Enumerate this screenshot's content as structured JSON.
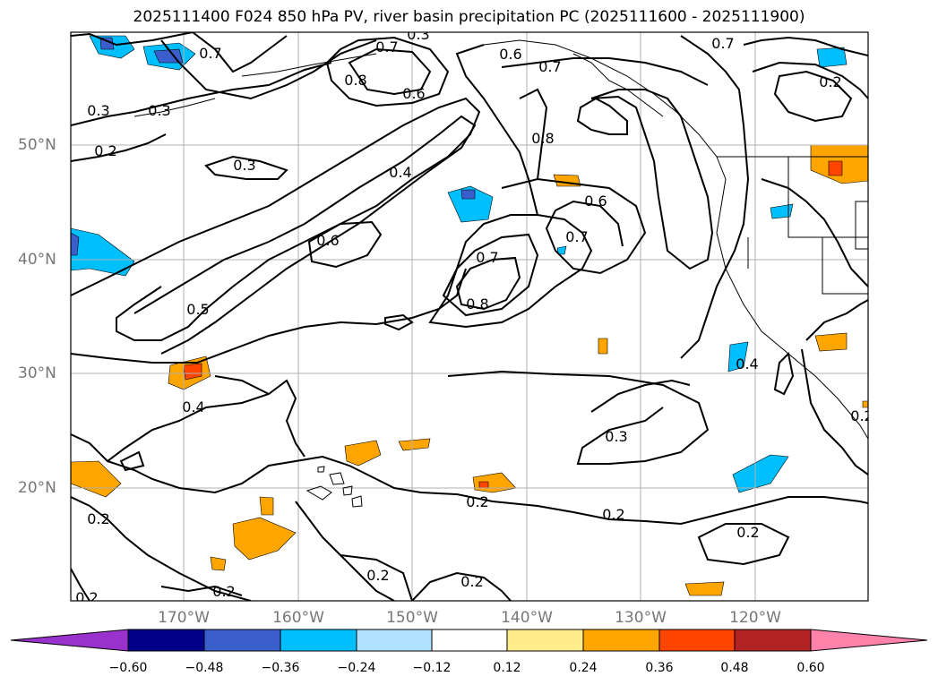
{
  "title": "2025111400 F024 850 hPa PV, river basin precipitation PC (2025111600 - 2025111900)",
  "lat_labels": [
    "50°N",
    "40°N",
    "30°N",
    "20°N"
  ],
  "lon_labels": [
    "170°W",
    "160°W",
    "150°W",
    "140°W",
    "130°W",
    "120°W"
  ],
  "contour_labels": [
    "0.7",
    "0.7",
    "0.6",
    "0.7",
    "0.3",
    "0.3",
    "0.2",
    "0.8",
    "0.6",
    "0.8",
    "0.3",
    "0.4",
    "0.6",
    "0.6",
    "0.7",
    "0.7",
    "0.8",
    "0.5",
    "0.4",
    "0.3",
    "0.2",
    "0.2",
    "0.2",
    "0.2",
    "0.2",
    "0.2",
    "0.2",
    "0.2",
    "0.4",
    "0.7",
    "0.2",
    "0.3",
    "0.2"
  ],
  "colorbar": {
    "ticks": [
      "−0.60",
      "−0.48",
      "−0.36",
      "−0.24",
      "−0.12",
      "0.12",
      "0.24",
      "0.36",
      "0.48",
      "0.60"
    ],
    "colors": [
      "#9932cc",
      "#00008b",
      "#3a5fcd",
      "#00bfff",
      "#b0e2ff",
      "#ffffff",
      "#ffec8b",
      "#ffa500",
      "#ff4500",
      "#b22222",
      "#ff82ab"
    ]
  }
}
